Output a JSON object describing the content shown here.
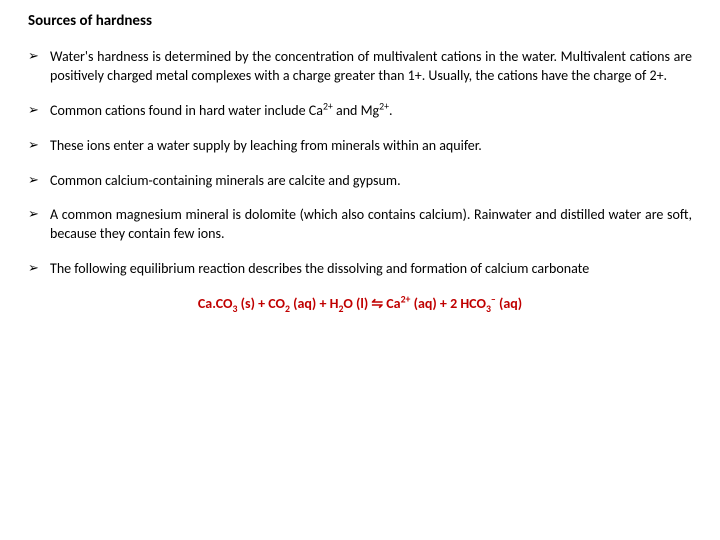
{
  "title": "Sources of hardness",
  "bullets": {
    "b1": "Water's hardness is determined by the concentration of multivalent cations in the water. Multivalent cations are positively charged metal complexes with a charge greater than 1+. Usually, the cations have the charge of 2+.",
    "b2_pre": "Common cations  found in hard water include Ca",
    "b2_mid": " and Mg",
    "b2_post": ".",
    "b3": "These ions enter a water supply by leaching from minerals within an aquifer.",
    "b4": "Common calcium-containing minerals are calcite and gypsum.",
    "b5": "A common magnesium mineral is dolomite (which also contains calcium). Rainwater and distilled water are soft, because they contain few ions.",
    "b6": "The following equilibrium reaction describes the dissolving and formation of calcium carbonate"
  },
  "equation": {
    "p1": "Ca.CO",
    "p2": " (s) + CO",
    "p3": " (aq) + H",
    "p4": "O (l) ⇋ Ca",
    "p5": " (aq) + 2 HCO",
    "p6": " (aq)",
    "sub3a": "3",
    "sub2a": "2",
    "sub2b": "2",
    "sup2p": "2+",
    "sub3b": "3",
    "supm": "–",
    "color": "#c00000"
  },
  "text_color": "#000000",
  "background_color": "#ffffff",
  "title_fontsize": 15,
  "body_fontsize": 14
}
